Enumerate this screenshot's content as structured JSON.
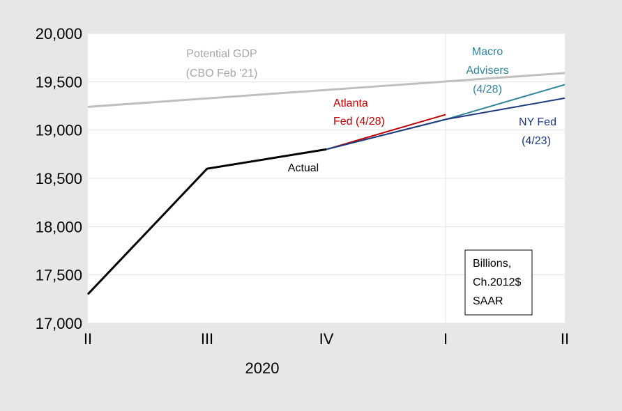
{
  "chart_data": {
    "type": "line",
    "categories": [
      "II",
      "III",
      "IV",
      "I",
      "II"
    ],
    "year_label": "2020",
    "ylim": [
      17000,
      20000
    ],
    "y_ticks": [
      "17,000",
      "17,500",
      "18,000",
      "18,500",
      "19,000",
      "19,500",
      "20,000"
    ],
    "grid": true,
    "series": [
      {
        "name": "Potential GDP (CBO Feb '21)",
        "color": "#bfbfbf",
        "x": [
          0,
          4
        ],
        "values": [
          19240,
          19590
        ]
      },
      {
        "name": "Actual",
        "color": "#000000",
        "x": [
          0,
          1,
          2
        ],
        "values": [
          17300,
          18600,
          18800
        ]
      },
      {
        "name": "Atlanta Fed (4/28)",
        "color": "#c00000",
        "x": [
          2,
          3
        ],
        "values": [
          18800,
          19160
        ]
      },
      {
        "name": "Macro Advisers (4/28)",
        "color": "#31849b",
        "x": [
          2,
          3,
          4
        ],
        "values": [
          18800,
          19110,
          19470
        ]
      },
      {
        "name": "NY Fed (4/23)",
        "color": "#1f3a7a",
        "x": [
          2,
          3,
          4
        ],
        "values": [
          18800,
          19110,
          19330
        ]
      }
    ]
  },
  "annotations": {
    "potential_l1": "Potential GDP",
    "potential_l2": "(CBO Feb '21)",
    "actual": "Actual",
    "atlanta_l1": "Atlanta",
    "atlanta_l2": "Fed (4/28)",
    "macro_l1": "Macro",
    "macro_l2": "Advisers",
    "macro_l3": "(4/28)",
    "nyfed_l1": "NY Fed",
    "nyfed_l2": "(4/23)",
    "units_l1": "Billions,",
    "units_l2": "Ch.2012$",
    "units_l3": "SAAR"
  }
}
